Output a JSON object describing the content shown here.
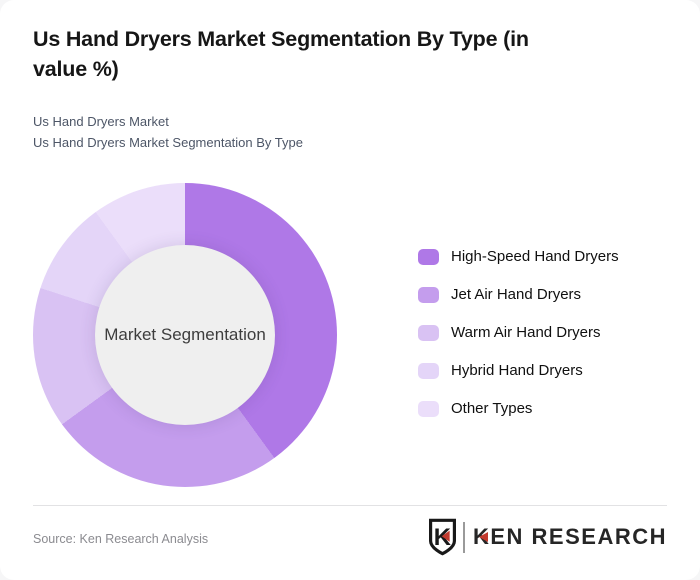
{
  "header": {
    "title_lines": [
      "Us Hand Dryers Market Segmentation By Type (in",
      "value %)"
    ],
    "subtitle_lines": [
      "Us Hand Dryers Market",
      "Us Hand Dryers Market Segmentation By Type"
    ]
  },
  "chart_data": {
    "type": "pie",
    "donut": true,
    "title": "Us Hand Dryers Market Segmentation By Type (in value %)",
    "center_label": "Market Segmentation",
    "categories": [
      "High-Speed Hand Dryers",
      "Jet Air Hand Dryers",
      "Warm Air Hand Dryers",
      "Hybrid Hand Dryers",
      "Other Types"
    ],
    "values": [
      40,
      25,
      15,
      10,
      10
    ],
    "unit": "%",
    "colors": [
      "#af78e7",
      "#c49ded",
      "#d9c2f3",
      "#e4d5f8",
      "#ebdefa"
    ],
    "start_angle_deg": 0,
    "center_bg": "#efefef",
    "legend_position": "right"
  },
  "footer": {
    "source": "Source: Ken Research Analysis",
    "logo_text": "KEN RESEARCH",
    "logo_accent_color": "#c13a2e"
  }
}
